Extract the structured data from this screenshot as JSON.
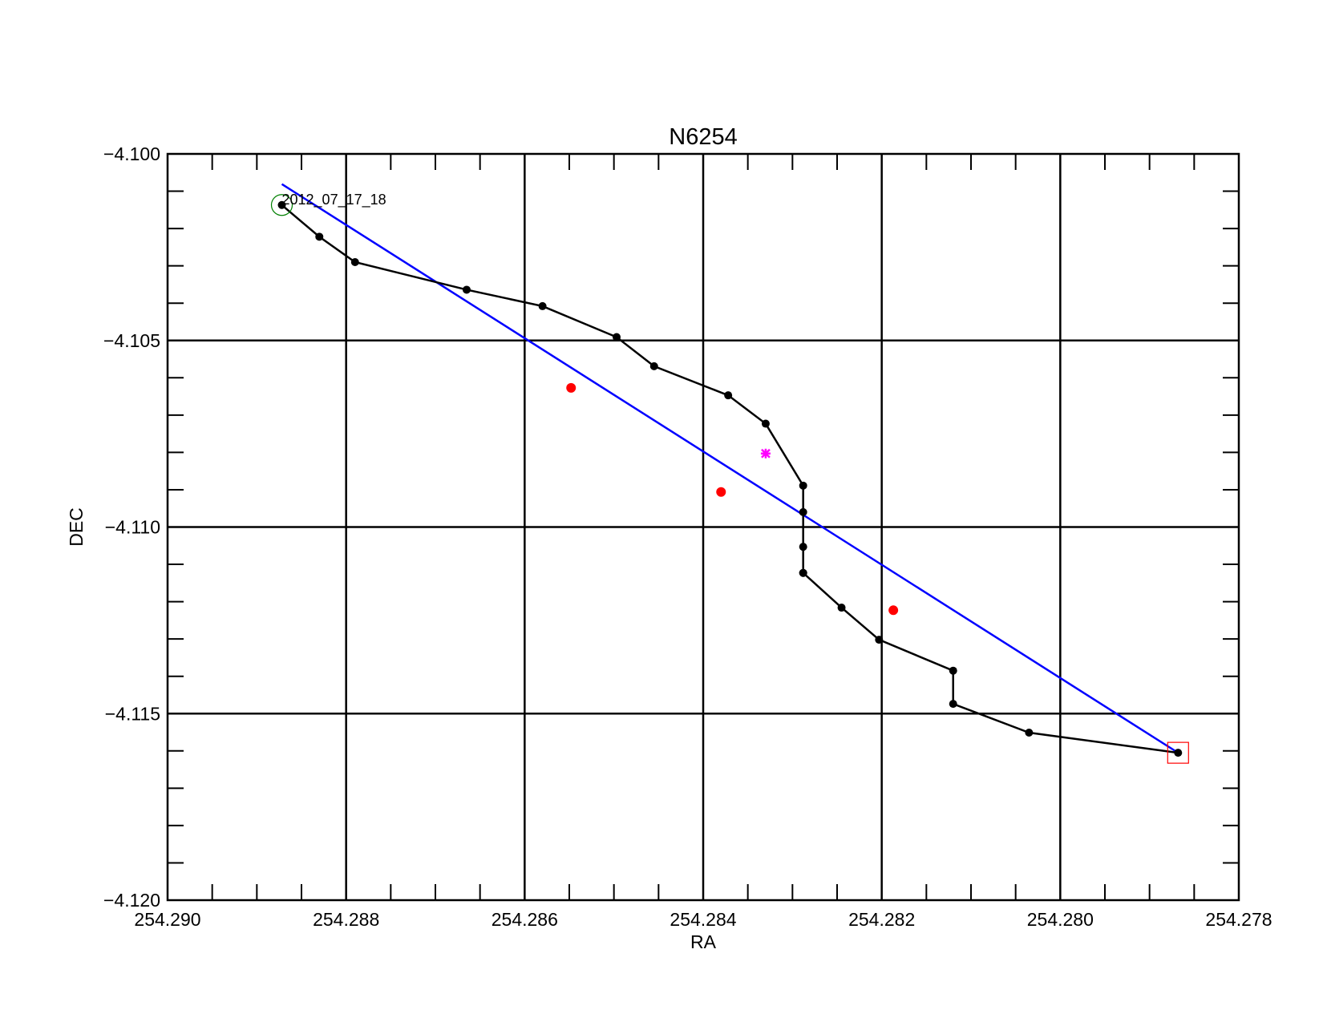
{
  "chart_data": {
    "type": "scatter",
    "title": "N6254",
    "xlabel": "RA",
    "ylabel": "DEC",
    "xlim": [
      254.29,
      254.278
    ],
    "ylim": [
      -4.12,
      -4.1
    ],
    "x_reversed": true,
    "grid": true,
    "x_ticks": [
      "254.290",
      "254.288",
      "254.286",
      "254.284",
      "254.282",
      "254.280",
      "254.278"
    ],
    "y_ticks": [
      "−4.100",
      "−4.105",
      "−4.110",
      "−4.115",
      "−4.120"
    ],
    "track": {
      "color": "#000000",
      "x": [
        254.28872,
        254.2883,
        254.2879,
        254.28665,
        254.2858,
        254.28497,
        254.28455,
        254.28372,
        254.2833,
        254.28288,
        254.28288,
        254.28288,
        254.28288,
        254.28288,
        254.28245,
        254.28203,
        254.2812,
        254.2812,
        254.28035,
        254.27868
      ],
      "y": [
        -4.10137,
        -4.10222,
        -4.1029,
        -4.10364,
        -4.10408,
        -4.10491,
        -4.10569,
        -4.10647,
        -4.10723,
        -4.10889,
        -4.1096,
        -4.11053,
        -4.11123,
        -4.11123,
        -4.11216,
        -4.11302,
        -4.11385,
        -4.11474,
        -4.11551,
        -4.11605
      ]
    },
    "highlight_point": {
      "x": 254.2833,
      "y": -4.10803,
      "color": "#ff00ff"
    },
    "fit_line": {
      "color": "#0000ff",
      "x": [
        254.28872,
        254.27868
      ],
      "y": [
        -4.10081,
        -4.11605
      ]
    },
    "fit_points": {
      "color": "#ff0000",
      "x": [
        254.28548,
        254.2838,
        254.28187
      ],
      "y": [
        -4.10627,
        -4.10906,
        -4.11223
      ]
    },
    "start_marker": {
      "x": 254.28872,
      "y": -4.10137,
      "color": "#008000",
      "label": "2012_07_17_18"
    },
    "end_marker": {
      "x": 254.27868,
      "y": -4.11605,
      "color": "#ff0000"
    }
  }
}
